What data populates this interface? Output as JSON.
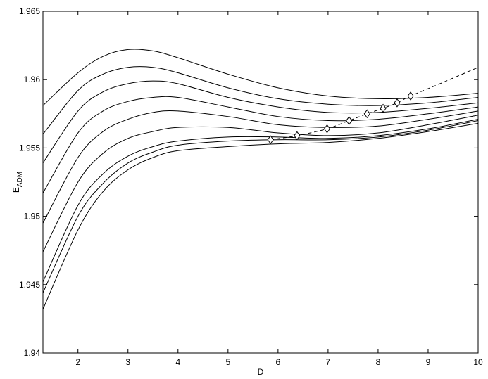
{
  "chart_data": {
    "type": "line",
    "title": "",
    "xlabel": "D",
    "ylabel_main": "E",
    "ylabel_sub": "ADM",
    "xlim": [
      1.3,
      10
    ],
    "ylim": [
      1.94,
      1.965
    ],
    "xticks": [
      {
        "v": 2,
        "label": "2"
      },
      {
        "v": 3,
        "label": "3"
      },
      {
        "v": 4,
        "label": "4"
      },
      {
        "v": 5,
        "label": "5"
      },
      {
        "v": 6,
        "label": "6"
      },
      {
        "v": 7,
        "label": "7"
      },
      {
        "v": 8,
        "label": "8"
      },
      {
        "v": 9,
        "label": "9"
      },
      {
        "v": 10,
        "label": "10"
      }
    ],
    "yticks": [
      {
        "v": 1.94,
        "label": "1.94"
      },
      {
        "v": 1.945,
        "label": "1.945"
      },
      {
        "v": 1.95,
        "label": "1.95"
      },
      {
        "v": 1.955,
        "label": "1.955"
      },
      {
        "v": 1.96,
        "label": "1.96"
      },
      {
        "v": 1.965,
        "label": "1.965"
      }
    ],
    "grid": false,
    "series": [
      {
        "style": "solid",
        "points": [
          [
            1.3,
            1.9581
          ],
          [
            2,
            1.9605
          ],
          [
            2.5,
            1.9617
          ],
          [
            3,
            1.9622
          ],
          [
            3.5,
            1.9621
          ],
          [
            4,
            1.9616
          ],
          [
            5,
            1.9604
          ],
          [
            6,
            1.9594
          ],
          [
            7,
            1.9588
          ],
          [
            8,
            1.9586
          ],
          [
            9,
            1.9587
          ],
          [
            10,
            1.959
          ]
        ]
      },
      {
        "style": "solid",
        "points": [
          [
            1.3,
            1.956
          ],
          [
            2,
            1.9592
          ],
          [
            2.5,
            1.9604
          ],
          [
            3,
            1.9609
          ],
          [
            3.5,
            1.9609
          ],
          [
            4,
            1.9605
          ],
          [
            5,
            1.9594
          ],
          [
            6,
            1.9586
          ],
          [
            7,
            1.9582
          ],
          [
            8,
            1.9581
          ],
          [
            9,
            1.9583
          ],
          [
            10,
            1.9587
          ]
        ]
      },
      {
        "style": "solid",
        "points": [
          [
            1.3,
            1.9539
          ],
          [
            2,
            1.9577
          ],
          [
            2.5,
            1.9591
          ],
          [
            3,
            1.9597
          ],
          [
            3.5,
            1.9599
          ],
          [
            4,
            1.9597
          ],
          [
            5,
            1.9587
          ],
          [
            6,
            1.958
          ],
          [
            7,
            1.9576
          ],
          [
            8,
            1.9576
          ],
          [
            9,
            1.9579
          ],
          [
            10,
            1.9583
          ]
        ]
      },
      {
        "style": "solid",
        "points": [
          [
            1.3,
            1.9517
          ],
          [
            2,
            1.9561
          ],
          [
            2.5,
            1.9577
          ],
          [
            3,
            1.9584
          ],
          [
            3.5,
            1.9587
          ],
          [
            4,
            1.9587
          ],
          [
            5,
            1.958
          ],
          [
            6,
            1.9573
          ],
          [
            7,
            1.957
          ],
          [
            8,
            1.9571
          ],
          [
            9,
            1.9575
          ],
          [
            10,
            1.958
          ]
        ]
      },
      {
        "style": "solid",
        "points": [
          [
            1.3,
            1.9495
          ],
          [
            2,
            1.9543
          ],
          [
            2.5,
            1.9562
          ],
          [
            3,
            1.9571
          ],
          [
            3.5,
            1.9576
          ],
          [
            4,
            1.9577
          ],
          [
            5,
            1.9573
          ],
          [
            6,
            1.9567
          ],
          [
            7,
            1.9565
          ],
          [
            8,
            1.9566
          ],
          [
            9,
            1.9571
          ],
          [
            10,
            1.9577
          ]
        ]
      },
      {
        "style": "solid",
        "points": [
          [
            1.3,
            1.9474
          ],
          [
            2,
            1.9525
          ],
          [
            2.5,
            1.9546
          ],
          [
            3,
            1.9557
          ],
          [
            3.5,
            1.9562
          ],
          [
            4,
            1.9565
          ],
          [
            5,
            1.9565
          ],
          [
            6,
            1.9561
          ],
          [
            7,
            1.9559
          ],
          [
            8,
            1.9561
          ],
          [
            9,
            1.9567
          ],
          [
            10,
            1.9574
          ]
        ]
      },
      {
        "style": "solid",
        "points": [
          [
            1.3,
            1.9452
          ],
          [
            2,
            1.9508
          ],
          [
            2.5,
            1.9531
          ],
          [
            3,
            1.9544
          ],
          [
            3.5,
            1.9551
          ],
          [
            4,
            1.9555
          ],
          [
            5,
            1.9558
          ],
          [
            6,
            1.9558
          ],
          [
            7,
            1.9557
          ],
          [
            8,
            1.9559
          ],
          [
            9,
            1.9564
          ],
          [
            10,
            1.9571
          ]
        ]
      },
      {
        "style": "solid",
        "points": [
          [
            1.3,
            1.9444
          ],
          [
            2,
            1.95
          ],
          [
            2.5,
            1.9524
          ],
          [
            3,
            1.9539
          ],
          [
            3.5,
            1.9547
          ],
          [
            4,
            1.9552
          ],
          [
            5,
            1.9555
          ],
          [
            6,
            1.9556
          ],
          [
            7,
            1.9556
          ],
          [
            8,
            1.9558
          ],
          [
            9,
            1.9563
          ],
          [
            10,
            1.957
          ]
        ]
      },
      {
        "style": "solid",
        "points": [
          [
            1.3,
            1.9432
          ],
          [
            2,
            1.949
          ],
          [
            2.5,
            1.9518
          ],
          [
            3,
            1.9534
          ],
          [
            3.5,
            1.9543
          ],
          [
            4,
            1.9548
          ],
          [
            5,
            1.9551
          ],
          [
            6,
            1.9553
          ],
          [
            7,
            1.9554
          ],
          [
            8,
            1.9557
          ],
          [
            9,
            1.9562
          ],
          [
            10,
            1.9568
          ]
        ]
      }
    ],
    "markers": {
      "shape": "diamond",
      "points": [
        [
          5.85,
          1.9556
        ],
        [
          6.38,
          1.9559
        ],
        [
          6.98,
          1.9564
        ],
        [
          7.42,
          1.957
        ],
        [
          7.78,
          1.9575
        ],
        [
          8.1,
          1.9579
        ],
        [
          8.38,
          1.9583
        ],
        [
          8.65,
          1.9588
        ]
      ]
    },
    "trend": {
      "style": "dashed",
      "points": [
        [
          5.85,
          1.9556
        ],
        [
          6.38,
          1.9559
        ],
        [
          6.98,
          1.9564
        ],
        [
          7.42,
          1.957
        ],
        [
          7.78,
          1.9575
        ],
        [
          8.1,
          1.9579
        ],
        [
          8.38,
          1.9583
        ],
        [
          8.65,
          1.9588
        ],
        [
          9.3,
          1.9598
        ],
        [
          10,
          1.9609
        ]
      ]
    }
  }
}
